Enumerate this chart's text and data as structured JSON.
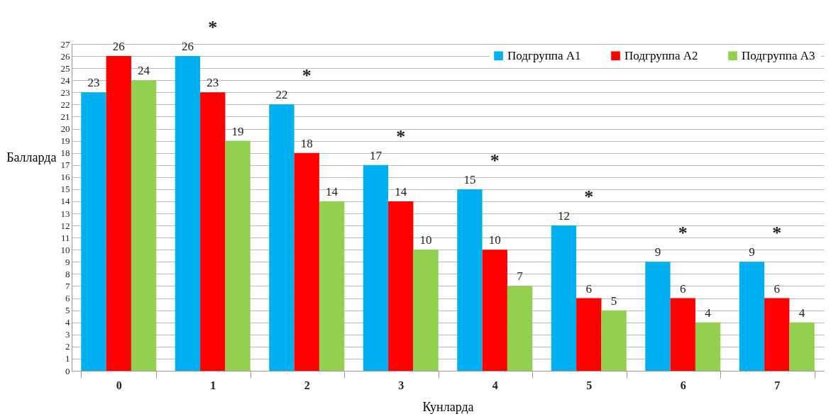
{
  "chart_data": {
    "type": "bar",
    "xlabel": "Кунларда",
    "ylabel": "Балларда",
    "categories": [
      "0",
      "1",
      "2",
      "3",
      "4",
      "5",
      "6",
      "7"
    ],
    "series": [
      {
        "name": "Подгруппа  А1",
        "color": "#00b0f0",
        "values": [
          23,
          26,
          22,
          17,
          15,
          12,
          9,
          9
        ]
      },
      {
        "name": "Подгруппа  А2",
        "color": "#ff0000",
        "values": [
          26,
          23,
          18,
          14,
          10,
          6,
          6,
          6
        ]
      },
      {
        "name": "Подгруппа  А3",
        "color": "#92d050",
        "values": [
          24,
          19,
          14,
          10,
          7,
          5,
          4,
          4
        ]
      }
    ],
    "ylim": [
      0,
      27
    ],
    "yticks": [
      0,
      1,
      2,
      3,
      4,
      5,
      6,
      7,
      8,
      9,
      10,
      11,
      12,
      13,
      14,
      15,
      16,
      17,
      18,
      19,
      20,
      21,
      22,
      23,
      24,
      25,
      26,
      27
    ],
    "grid": "y",
    "legend": "top right",
    "data_labels": true,
    "annotations": [
      "*",
      "*",
      "*",
      "*",
      "*",
      "*",
      "*"
    ]
  }
}
